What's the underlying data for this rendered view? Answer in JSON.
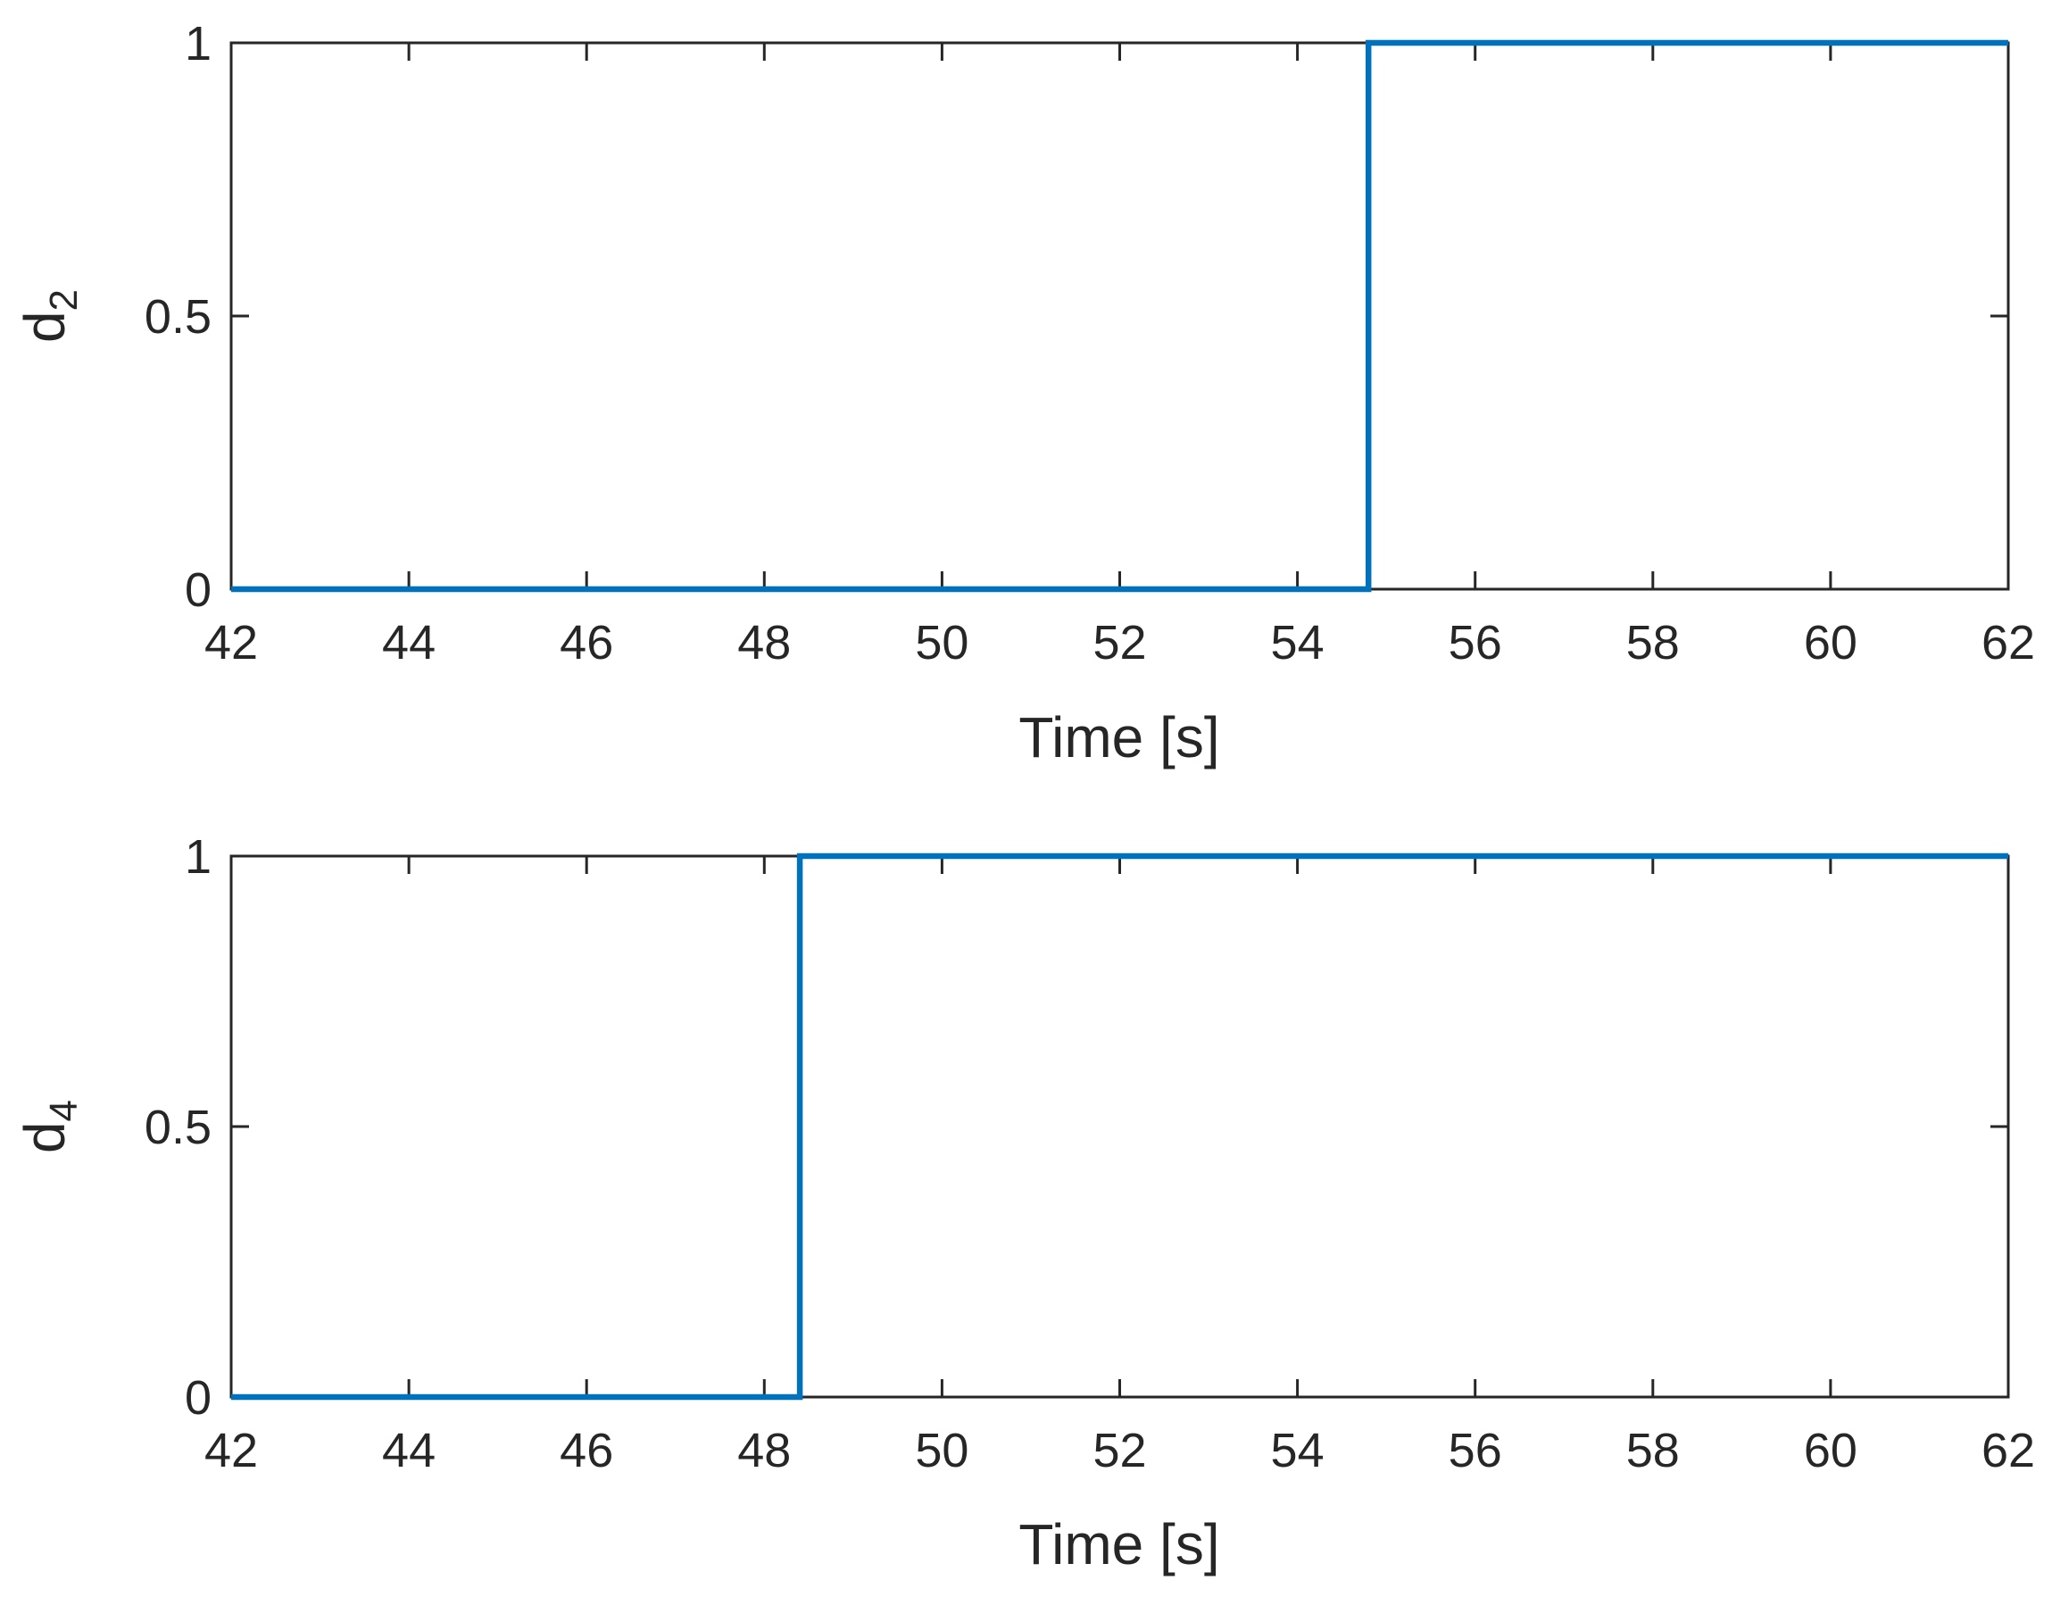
{
  "chart_data": [
    {
      "type": "line",
      "title": "",
      "xlabel": "Time [s]",
      "ylabel": "d",
      "ylabel_subscript": "2",
      "xlim": [
        42,
        62
      ],
      "ylim": [
        0,
        1
      ],
      "xticks": [
        "42",
        "44",
        "46",
        "48",
        "50",
        "52",
        "54",
        "56",
        "58",
        "60",
        "62"
      ],
      "yticks": [
        "0",
        "0.5",
        "1"
      ],
      "grid": false,
      "line_color": "#0072BD",
      "series": [
        {
          "x": [
            42,
            54.8,
            54.8,
            62
          ],
          "y": [
            0,
            0,
            1,
            1
          ]
        }
      ]
    },
    {
      "type": "line",
      "title": "",
      "xlabel": "Time [s]",
      "ylabel": "d",
      "ylabel_subscript": "4",
      "xlim": [
        42,
        62
      ],
      "ylim": [
        0,
        1
      ],
      "xticks": [
        "42",
        "44",
        "46",
        "48",
        "50",
        "52",
        "54",
        "56",
        "58",
        "60",
        "62"
      ],
      "yticks": [
        "0",
        "0.5",
        "1"
      ],
      "grid": false,
      "line_color": "#0072BD",
      "series": [
        {
          "x": [
            42,
            48.4,
            48.4,
            62
          ],
          "y": [
            0,
            0,
            1,
            1
          ]
        }
      ]
    }
  ]
}
